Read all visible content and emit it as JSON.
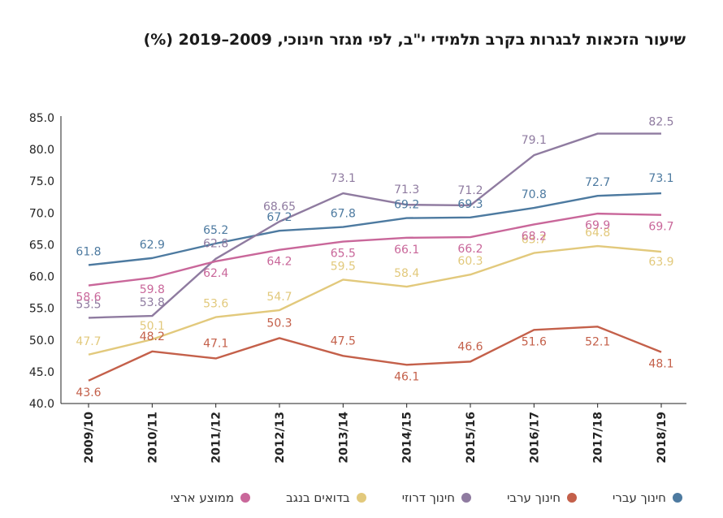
{
  "title": "שיעור הזכאות לבגרות בקרב תלמידי י\"ב, לפי מגזר חינוכי, 2009–2019 (%)",
  "chart_data": {
    "type": "line",
    "title": "שיעור הזכאות לבגרות בקרב תלמידי י\"ב, לפי מגזר חינוכי, 2009–2019 (%)",
    "categories": [
      "2009/10",
      "2010/11",
      "2011/12",
      "2012/13",
      "2013/14",
      "2014/15",
      "2015/16",
      "2016/17",
      "2017/18",
      "2018/19"
    ],
    "ylim": [
      40,
      85
    ],
    "yticks": [
      "40.0",
      "45.0",
      "50.0",
      "55.0",
      "60.0",
      "65.0",
      "70.0",
      "75.0",
      "80.0",
      "85.0"
    ],
    "grid": false,
    "legend_position": "bottom",
    "series": [
      {
        "name": "חינוך עברי",
        "color": "#4d7aa0",
        "values": [
          61.8,
          62.9,
          65.2,
          67.2,
          67.8,
          69.2,
          69.3,
          70.8,
          72.7,
          73.1
        ],
        "labels": [
          "61.8",
          "62.9",
          "65.2",
          "67.2",
          "67.8",
          "69.2",
          "69.3",
          "70.8",
          "72.7",
          "73.1"
        ]
      },
      {
        "name": "חינוך ערבי",
        "color": "#c4604a",
        "values": [
          43.6,
          48.2,
          47.1,
          50.3,
          47.5,
          46.1,
          46.6,
          51.6,
          52.1,
          48.1
        ],
        "labels": [
          "43.6",
          "48.2",
          "47.1",
          "50.3",
          "47.5",
          "46.1",
          "46.6",
          "51.6",
          "52.1",
          "48.1"
        ]
      },
      {
        "name": "חינוך דרוזי",
        "color": "#8f7ba0",
        "values": [
          53.5,
          53.8,
          62.8,
          68.65,
          73.1,
          71.3,
          71.2,
          79.1,
          82.5,
          82.5
        ],
        "labels": [
          "53.5",
          "53.8",
          "62.8",
          "68.65",
          "73.1",
          "71.3",
          "71.2",
          "79.1",
          "",
          ""
        ]
      },
      {
        "name": "בדואים בנגב",
        "color": "#e2c97c",
        "values": [
          47.7,
          50.1,
          53.6,
          54.7,
          59.5,
          58.4,
          60.3,
          63.7,
          64.8,
          63.9
        ],
        "labels": [
          "47.7",
          "50.1",
          "53.6",
          "54.7",
          "59.5",
          "58.4",
          "60.3",
          "63.7",
          "64.8",
          "63.9"
        ]
      },
      {
        "name": "ממוצע ארצי",
        "color": "#c9679a",
        "values": [
          58.6,
          59.8,
          62.4,
          64.2,
          65.5,
          66.1,
          66.2,
          68.2,
          69.9,
          69.7
        ],
        "labels": [
          "58.6",
          "59.8",
          "62.4",
          "64.2",
          "65.5",
          "66.1",
          "66.2",
          "68.2",
          "69.9",
          "69.7"
        ]
      }
    ],
    "extra_labels": [
      {
        "series": 2,
        "index": 9,
        "text": "82.5"
      }
    ]
  }
}
